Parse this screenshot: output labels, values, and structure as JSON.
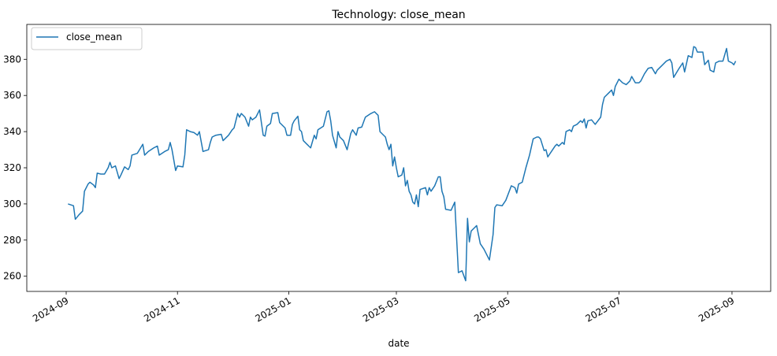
{
  "chart_data": {
    "type": "line",
    "title": "Technology: close_mean",
    "x_label": "date",
    "xlim": [
      19945.4,
      20353.2
    ],
    "xticks": [
      {
        "value": 19967,
        "label": "2024-09"
      },
      {
        "value": 20028,
        "label": "2024-11"
      },
      {
        "value": 20089,
        "label": "2025-01"
      },
      {
        "value": 20148,
        "label": "2025-03"
      },
      {
        "value": 20209,
        "label": "2025-05"
      },
      {
        "value": 20270,
        "label": "2025-07"
      },
      {
        "value": 20332,
        "label": "2025-09"
      }
    ],
    "ylim": [
      251.6,
      399.3
    ],
    "yticks": [
      260,
      280,
      300,
      320,
      340,
      360,
      380
    ],
    "legend": "upper left",
    "x": [
      19968,
      19971,
      19972,
      19974,
      19976,
      19977,
      19979,
      19980,
      19982,
      19983,
      19984,
      19986,
      19988,
      19990,
      19991,
      19992,
      19994,
      19996,
      19997,
      19999,
      20001,
      20002,
      20003,
      20006,
      20009,
      20010,
      20012,
      20015,
      20017,
      20018,
      20021,
      20023,
      20024,
      20025,
      20027,
      20028,
      20031,
      20032,
      20033,
      20035,
      20037,
      20039,
      20040,
      20042,
      20045,
      20046,
      20047,
      20049,
      20052,
      20053,
      20056,
      20058,
      20059,
      20061,
      20062,
      20063,
      20065,
      20067,
      20068,
      20069,
      20071,
      20073,
      20075,
      20076,
      20077,
      20079,
      20080,
      20083,
      20084,
      20087,
      20088,
      20090,
      20091,
      20092,
      20094,
      20095,
      20096,
      20097,
      20099,
      20101,
      20103,
      20104,
      20105,
      20108,
      20110,
      20111,
      20112,
      20113,
      20115,
      20116,
      20117,
      20119,
      20121,
      20123,
      20124,
      20126,
      20127,
      20129,
      20131,
      20134,
      20136,
      20138,
      20139,
      20142,
      20143,
      20144,
      20145,
      20146,
      20147,
      20148,
      20149,
      20151,
      20152,
      20153,
      20154,
      20155,
      20156,
      20157,
      20158,
      20159,
      20160,
      20161,
      20164,
      20165,
      20166,
      20167,
      20169,
      20171,
      20172,
      20173,
      20174,
      20175,
      20178,
      20180,
      20182,
      20184,
      20186,
      20187,
      20188,
      20189,
      20191,
      20192,
      20194,
      20196,
      20199,
      20201,
      20202,
      20203,
      20206,
      20208,
      20211,
      20213,
      20214,
      20215,
      20217,
      20219,
      20221,
      20223,
      20225,
      20226,
      20227,
      20229,
      20230,
      20231,
      20233,
      20235,
      20236,
      20237,
      20239,
      20240,
      20241,
      20243,
      20244,
      20245,
      20247,
      20249,
      20250,
      20251,
      20252,
      20253,
      20255,
      20257,
      20260,
      20261,
      20262,
      20264,
      20266,
      20267,
      20268,
      20270,
      20272,
      20274,
      20276,
      20277,
      20279,
      20281,
      20282,
      20284,
      20286,
      20288,
      20290,
      20291,
      20294,
      20296,
      20298,
      20299,
      20300,
      20303,
      20305,
      20306,
      20308,
      20310,
      20311,
      20312,
      20313,
      20316,
      20317,
      20319,
      20320,
      20322,
      20323,
      20325,
      20327,
      20329,
      20330,
      20332,
      20333,
      20334
    ],
    "series": [
      {
        "name": "close_mean",
        "color": "#1f77b4",
        "values": [
          300,
          299,
          291.5,
          294,
          296,
          307,
          311,
          312,
          310.5,
          309,
          317,
          316.5,
          316.5,
          320,
          323,
          320,
          321,
          314,
          316,
          320.5,
          319,
          321,
          327,
          328,
          333,
          327,
          329,
          331,
          332,
          327,
          329,
          330,
          334,
          330,
          318.5,
          321,
          320.5,
          327,
          341,
          340,
          339.5,
          338,
          340,
          329,
          330,
          334,
          337,
          338,
          338.5,
          335,
          338,
          341,
          342,
          350,
          348,
          350,
          348,
          343,
          348,
          346.5,
          348,
          352,
          338,
          337.5,
          343,
          344.5,
          350,
          350.5,
          345,
          342,
          338,
          338,
          344,
          346,
          348.5,
          341,
          340,
          335,
          333,
          331,
          338,
          336,
          341,
          343,
          351,
          351.5,
          346,
          338,
          331,
          340,
          337,
          335,
          330,
          339,
          341,
          338,
          342,
          342.5,
          348,
          350,
          351,
          349,
          340,
          337,
          333,
          330,
          333,
          321,
          326,
          320,
          315,
          316,
          320,
          310,
          313,
          307,
          305,
          301,
          300,
          305,
          298.5,
          308,
          309,
          305,
          309,
          307,
          310,
          315,
          315,
          307,
          304,
          297,
          296.5,
          301,
          262,
          263,
          257.5,
          292,
          279,
          285,
          287,
          288,
          278,
          275,
          269,
          283,
          298,
          299.5,
          299,
          302,
          310,
          309,
          306,
          311,
          312,
          320,
          327,
          336,
          337,
          337,
          336,
          329.5,
          330,
          326,
          329,
          332,
          333,
          332,
          334,
          333,
          340,
          341,
          340,
          343,
          344,
          346,
          345,
          347,
          342,
          346,
          346.5,
          344,
          348,
          355,
          359,
          361,
          363,
          360,
          365,
          369,
          367,
          366,
          368,
          370.5,
          367,
          367,
          368,
          372,
          375,
          375.5,
          372,
          374,
          377,
          379,
          380,
          378,
          370,
          375,
          378,
          373,
          382,
          381,
          387,
          386.5,
          384,
          384,
          377,
          379.5,
          374,
          373,
          378,
          379,
          379,
          386,
          379,
          378,
          377,
          379
        ]
      }
    ]
  }
}
